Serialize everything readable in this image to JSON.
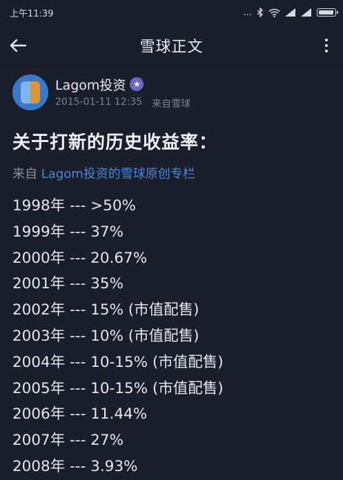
{
  "status_bar": {
    "time": "上午11:39",
    "dots": "..."
  },
  "app_bar": {
    "title": "雪球正文"
  },
  "author": {
    "name": "Lagom投资",
    "date": "2015-01-11 12:35",
    "source": "来自雪球"
  },
  "article": {
    "headline": "关于打新的历史收益率：",
    "source_prefix": "来自 ",
    "source_link": "Lagom投资的雪球原创专栏",
    "returns": [
      "1998年 --- >50%",
      "1999年 --- 37%",
      "2000年 --- 20.67%",
      "2001年 --- 35%",
      "2002年 --- 15% (市值配售)",
      "2003年 --- 10% (市值配售)",
      "2004年 --- 10-15% (市值配售)",
      "2005年 --- 10-15% (市值配售)",
      "2006年 --- 11.44%",
      "2007年 --- 27%",
      "2008年 --- 3.93%"
    ]
  }
}
